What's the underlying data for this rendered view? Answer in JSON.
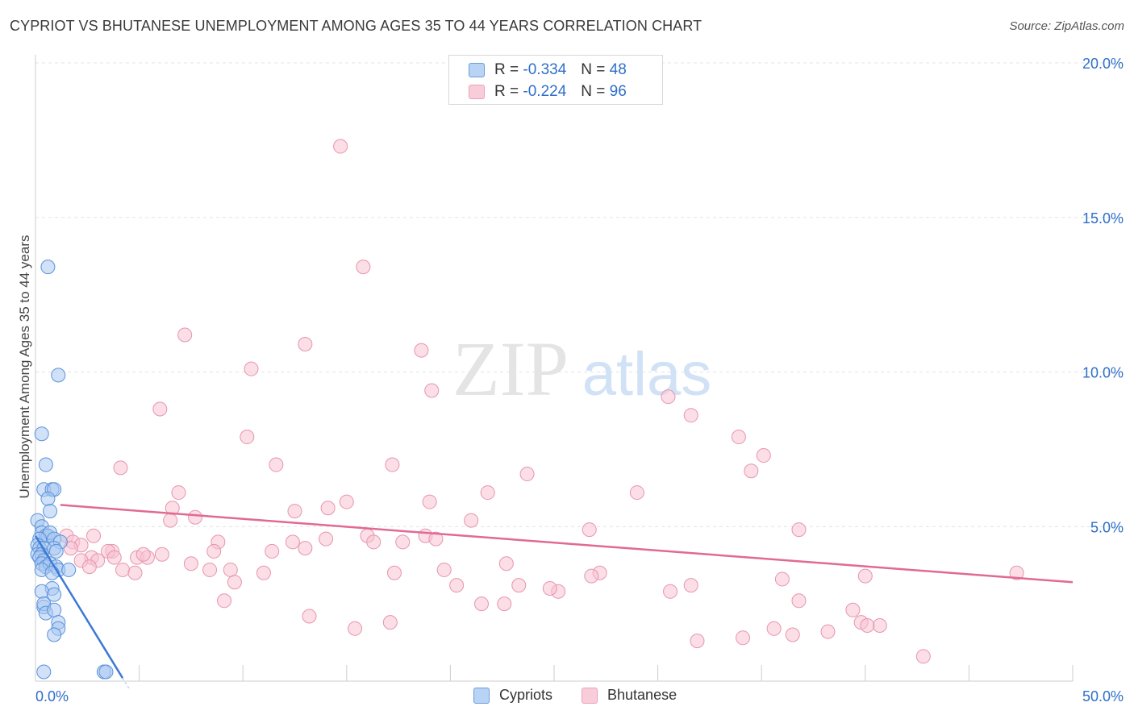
{
  "title": "CYPRIOT VS BHUTANESE UNEMPLOYMENT AMONG AGES 35 TO 44 YEARS CORRELATION CHART",
  "source": "Source: ZipAtlas.com",
  "watermark": {
    "zip": "ZIP",
    "atlas": "atlas"
  },
  "legend": {
    "cypriots": {
      "r_label": "R = ",
      "r_value": "-0.334",
      "n_label": "N = ",
      "n_value": "48"
    },
    "bhutanese": {
      "r_label": "R = ",
      "r_value": "-0.224",
      "n_label": "N = ",
      "n_value": "96"
    }
  },
  "chart_data": {
    "type": "scatter",
    "title": "CYPRIOT VS BHUTANESE UNEMPLOYMENT AMONG AGES 35 TO 44 YEARS CORRELATION CHART",
    "xlabel": "",
    "ylabel": "Unemployment Among Ages 35 to 44 years",
    "xlim": [
      0,
      50
    ],
    "ylim": [
      0,
      20
    ],
    "x_tick_labels": [
      "0.0%",
      "50.0%"
    ],
    "y_ticks": [
      5,
      10,
      15,
      20
    ],
    "y_tick_labels": [
      "5.0%",
      "10.0%",
      "15.0%",
      "20.0%"
    ],
    "colors": {
      "cypriots_fill": "#a9c9f2",
      "cypriots_stroke": "#5b92d9",
      "cypriots_line": "#3b7ad6",
      "bhutanese_fill": "#f7c2d2",
      "bhutanese_stroke": "#e795b0",
      "bhutanese_line": "#e06a94",
      "axis_text": "#2e6fc7"
    },
    "series": [
      {
        "name": "Cypriots",
        "trend": {
          "x": [
            0,
            4.2
          ],
          "y": [
            4.7,
            0.1
          ]
        },
        "points": [
          [
            0.6,
            13.4
          ],
          [
            1.1,
            9.9
          ],
          [
            0.3,
            8.0
          ],
          [
            0.5,
            7.0
          ],
          [
            0.4,
            6.2
          ],
          [
            0.8,
            6.2
          ],
          [
            0.9,
            6.2
          ],
          [
            0.6,
            5.9
          ],
          [
            0.7,
            5.5
          ],
          [
            0.1,
            5.2
          ],
          [
            0.3,
            5.0
          ],
          [
            0.3,
            4.8
          ],
          [
            0.5,
            4.7
          ],
          [
            0.6,
            4.7
          ],
          [
            0.7,
            4.8
          ],
          [
            0.9,
            4.6
          ],
          [
            0.2,
            4.6
          ],
          [
            0.1,
            4.4
          ],
          [
            1.2,
            4.5
          ],
          [
            0.2,
            4.3
          ],
          [
            0.4,
            4.3
          ],
          [
            0.9,
            4.3
          ],
          [
            1.0,
            4.2
          ],
          [
            0.1,
            4.1
          ],
          [
            0.3,
            4.1
          ],
          [
            0.2,
            4.0
          ],
          [
            0.4,
            3.9
          ],
          [
            0.3,
            3.8
          ],
          [
            0.5,
            3.7
          ],
          [
            0.7,
            3.8
          ],
          [
            1.0,
            3.7
          ],
          [
            1.1,
            3.6
          ],
          [
            0.3,
            3.6
          ],
          [
            1.6,
            3.6
          ],
          [
            0.8,
            3.5
          ],
          [
            0.8,
            3.0
          ],
          [
            0.3,
            2.9
          ],
          [
            0.9,
            2.8
          ],
          [
            0.4,
            2.4
          ],
          [
            0.4,
            2.5
          ],
          [
            0.5,
            2.2
          ],
          [
            0.9,
            2.3
          ],
          [
            1.1,
            1.9
          ],
          [
            1.1,
            1.7
          ],
          [
            0.9,
            1.5
          ],
          [
            0.4,
            0.3
          ],
          [
            3.3,
            0.3
          ],
          [
            3.4,
            0.3
          ]
        ]
      },
      {
        "name": "Bhutanese",
        "trend": {
          "x": [
            1.2,
            50
          ],
          "y": [
            5.7,
            3.2
          ]
        },
        "points": [
          [
            14.7,
            17.3
          ],
          [
            15.8,
            13.4
          ],
          [
            7.2,
            11.2
          ],
          [
            13.0,
            10.9
          ],
          [
            18.6,
            10.7
          ],
          [
            10.4,
            10.1
          ],
          [
            19.1,
            9.4
          ],
          [
            30.5,
            9.2
          ],
          [
            6.0,
            8.8
          ],
          [
            31.6,
            8.6
          ],
          [
            10.2,
            7.9
          ],
          [
            33.9,
            7.9
          ],
          [
            35.1,
            7.3
          ],
          [
            4.1,
            6.9
          ],
          [
            17.2,
            7.0
          ],
          [
            11.6,
            7.0
          ],
          [
            34.5,
            6.8
          ],
          [
            23.7,
            6.7
          ],
          [
            6.9,
            6.1
          ],
          [
            21.8,
            6.1
          ],
          [
            29.0,
            6.1
          ],
          [
            15.0,
            5.8
          ],
          [
            19.0,
            5.8
          ],
          [
            14.1,
            5.6
          ],
          [
            6.6,
            5.6
          ],
          [
            12.5,
            5.5
          ],
          [
            7.7,
            5.3
          ],
          [
            6.5,
            5.2
          ],
          [
            21.0,
            5.2
          ],
          [
            26.7,
            4.9
          ],
          [
            36.8,
            4.9
          ],
          [
            16.0,
            4.7
          ],
          [
            18.8,
            4.7
          ],
          [
            2.8,
            4.7
          ],
          [
            1.5,
            4.7
          ],
          [
            19.3,
            4.6
          ],
          [
            14.0,
            4.6
          ],
          [
            16.3,
            4.5
          ],
          [
            12.4,
            4.5
          ],
          [
            8.8,
            4.5
          ],
          [
            17.7,
            4.5
          ],
          [
            1.8,
            4.5
          ],
          [
            2.2,
            4.4
          ],
          [
            13.0,
            4.3
          ],
          [
            1.7,
            4.3
          ],
          [
            11.4,
            4.2
          ],
          [
            3.7,
            4.2
          ],
          [
            3.5,
            4.2
          ],
          [
            8.6,
            4.2
          ],
          [
            4.9,
            4.0
          ],
          [
            5.4,
            4.0
          ],
          [
            3.8,
            4.0
          ],
          [
            2.7,
            4.0
          ],
          [
            6.1,
            4.1
          ],
          [
            5.2,
            4.1
          ],
          [
            2.2,
            3.9
          ],
          [
            3.0,
            3.9
          ],
          [
            7.5,
            3.8
          ],
          [
            22.7,
            3.8
          ],
          [
            2.6,
            3.7
          ],
          [
            4.2,
            3.6
          ],
          [
            8.4,
            3.6
          ],
          [
            9.4,
            3.6
          ],
          [
            11.0,
            3.5
          ],
          [
            17.3,
            3.5
          ],
          [
            4.8,
            3.5
          ],
          [
            19.7,
            3.6
          ],
          [
            27.2,
            3.5
          ],
          [
            26.8,
            3.4
          ],
          [
            40.0,
            3.4
          ],
          [
            47.3,
            3.5
          ],
          [
            9.6,
            3.2
          ],
          [
            36.0,
            3.3
          ],
          [
            20.3,
            3.1
          ],
          [
            23.3,
            3.1
          ],
          [
            31.6,
            3.1
          ],
          [
            25.2,
            2.9
          ],
          [
            24.8,
            3.0
          ],
          [
            30.6,
            2.9
          ],
          [
            9.1,
            2.6
          ],
          [
            36.8,
            2.6
          ],
          [
            21.5,
            2.5
          ],
          [
            22.6,
            2.5
          ],
          [
            39.4,
            2.3
          ],
          [
            13.2,
            2.1
          ],
          [
            17.1,
            1.9
          ],
          [
            15.4,
            1.7
          ],
          [
            39.8,
            1.9
          ],
          [
            40.7,
            1.8
          ],
          [
            35.6,
            1.7
          ],
          [
            38.2,
            1.6
          ],
          [
            40.1,
            1.8
          ],
          [
            31.9,
            1.3
          ],
          [
            34.1,
            1.4
          ],
          [
            36.5,
            1.5
          ],
          [
            42.8,
            0.8
          ]
        ]
      }
    ]
  }
}
